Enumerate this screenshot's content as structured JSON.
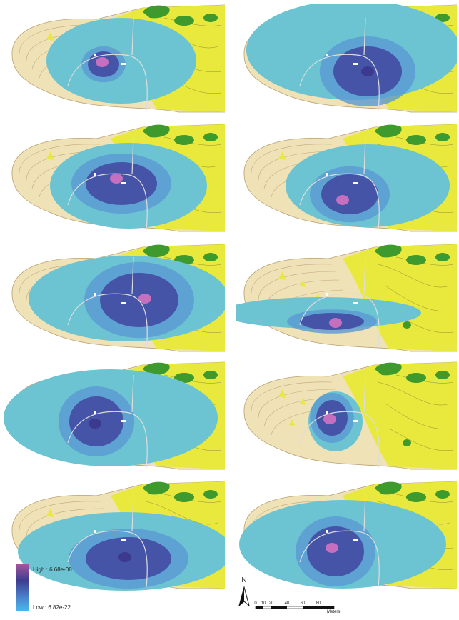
{
  "legend": {
    "high": "High : 6.68e-08",
    "low": "Low : 6.82e-22"
  },
  "north_arrow": "N",
  "scale_bar": {
    "labels": [
      "0",
      "10",
      "20",
      "40",
      "60",
      "80"
    ],
    "unit": "Meters"
  }
}
